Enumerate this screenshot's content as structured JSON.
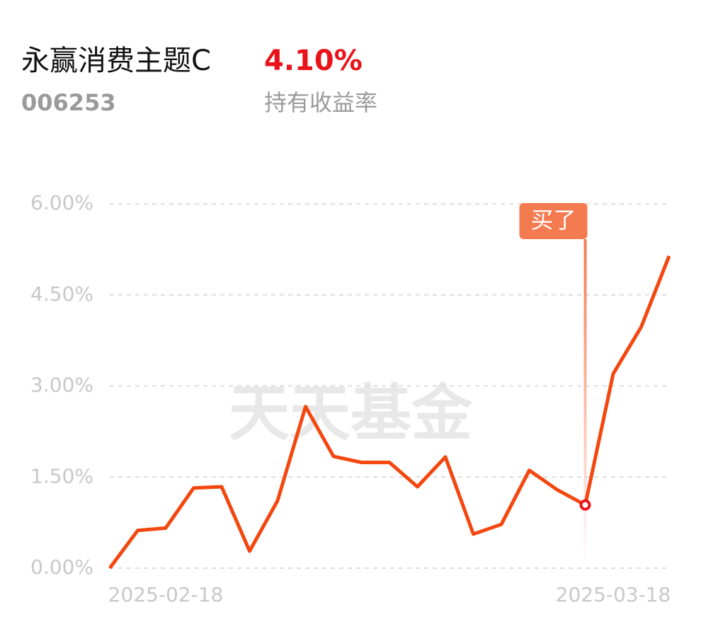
{
  "header": {
    "title": "永赢消费主题C",
    "return": "4.10%",
    "code": "006253",
    "return_label": "持有收益率"
  },
  "chart_data": {
    "type": "line",
    "categories": [
      null,
      null,
      "2025-02-18",
      null,
      null,
      null,
      null,
      null,
      null,
      null,
      null,
      null,
      null,
      null,
      null,
      null,
      null,
      null,
      "2025-03-18",
      null,
      null
    ],
    "values": [
      0,
      0.62,
      0.66,
      1.32,
      1.34,
      0.28,
      1.11,
      2.66,
      1.84,
      1.74,
      1.74,
      1.34,
      1.83,
      0.56,
      0.72,
      1.61,
      1.29,
      1.04,
      3.2,
      3.97,
      5.14
    ],
    "color": "#f4470f",
    "ylim": [
      0,
      6
    ],
    "yticks": [
      {
        "value": 0,
        "label": "0.00%"
      },
      {
        "value": 1.5,
        "label": "1.50%"
      },
      {
        "value": 3,
        "label": "3.00%"
      },
      {
        "value": 4.5,
        "label": "4.50%"
      },
      {
        "value": 6,
        "label": "6.00%"
      }
    ],
    "grid": true,
    "watermark": "天天基金",
    "annotations": [
      {
        "label": "买了",
        "index": 17
      }
    ]
  }
}
